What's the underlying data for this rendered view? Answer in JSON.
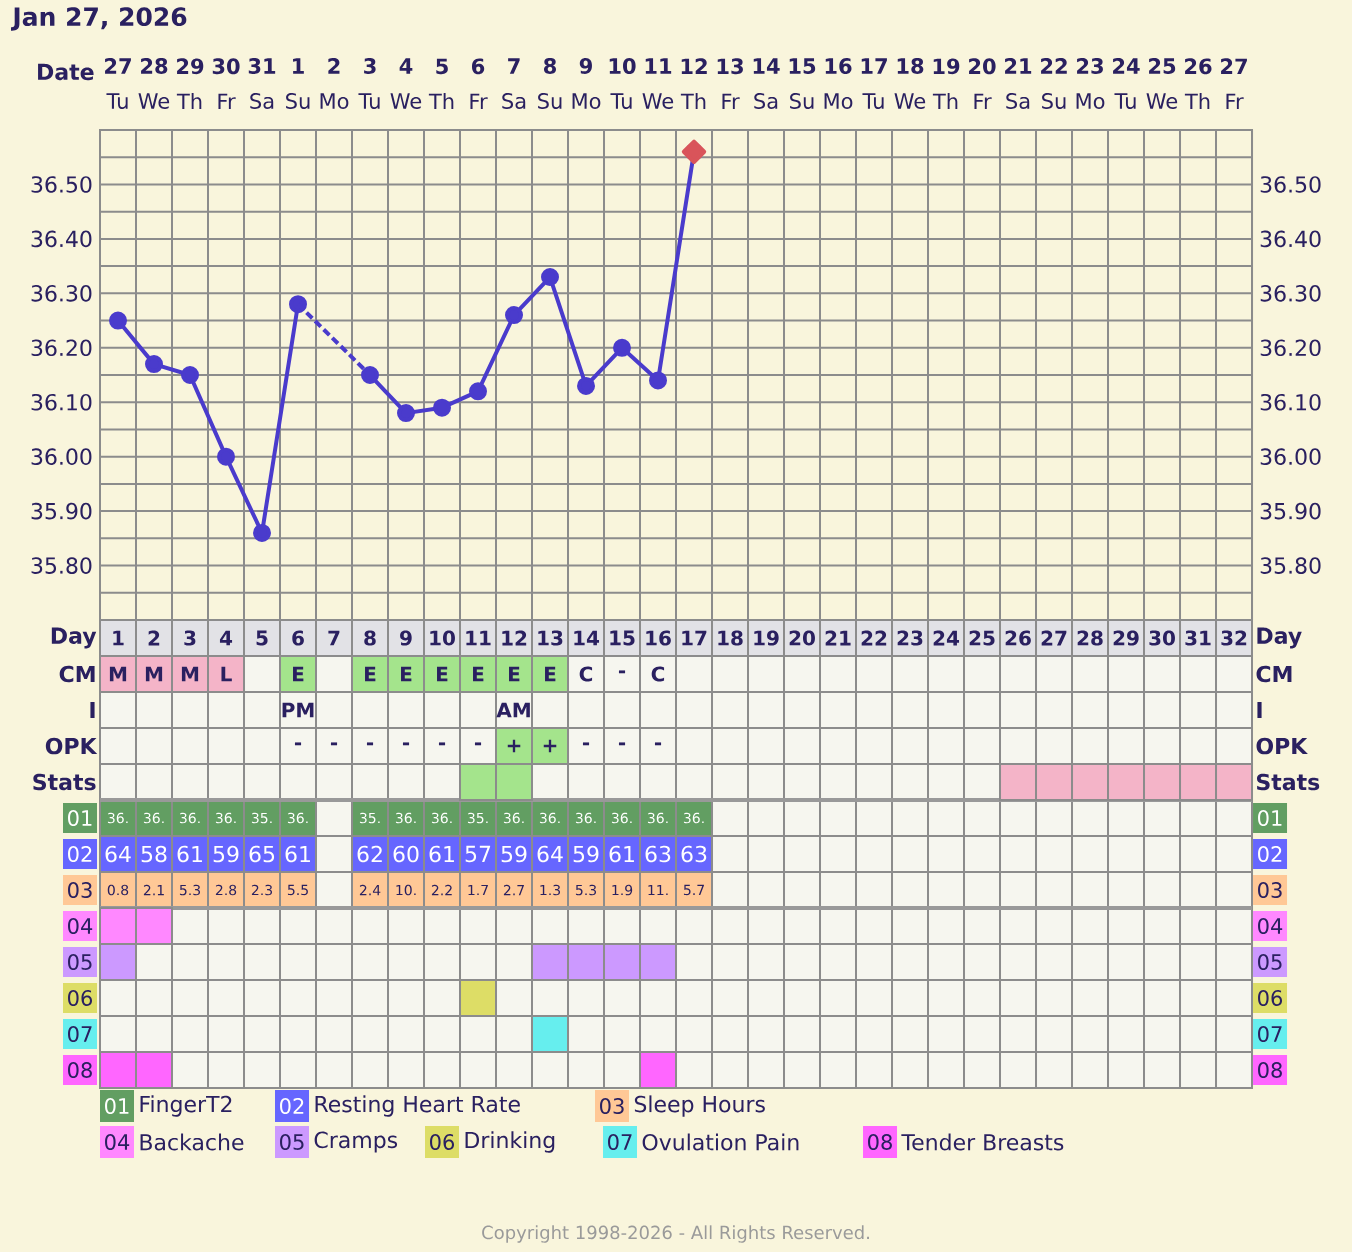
{
  "chart_data": [
    {
      "type": "line",
      "title": "Jan 27, 2026",
      "xlabel": "Date",
      "categories": [
        "**27** Tu",
        "**28** We",
        "**29** Th",
        "**30** Fr",
        "**31** Sa",
        "**1** Su",
        "**2** Mo",
        "**3** Tu",
        "**4** We",
        "**5** Th",
        "**6** Fr",
        "**7** Sa",
        "**8** Su",
        "**9** Mo",
        "**10** Tu",
        "**11** We",
        "**12** Th",
        "**13** Fr",
        "**14** Sa",
        "**15** Su",
        "**16** Mo",
        "**17** Tu",
        "**18** We",
        "**19** Th",
        "**20** Fr",
        "**21** Sa",
        "**22** Su",
        "**23** Mo",
        "**24** Tu",
        "**25** We",
        "**26** Th",
        "**27** Fr"
      ],
      "ylim": [
        35.7,
        36.6
      ],
      "yticks": [
        {
          "value": 35.75,
          "label": null
        },
        {
          "value": 35.8,
          "label": "35.80"
        },
        {
          "value": 35.85,
          "label": null
        },
        {
          "value": 35.9,
          "label": "35.90"
        },
        {
          "value": 35.95,
          "label": null
        },
        {
          "value": 36.0,
          "label": "36.00"
        },
        {
          "value": 36.05,
          "label": null
        },
        {
          "value": 36.1,
          "label": "36.10"
        },
        {
          "value": 36.15,
          "label": null
        },
        {
          "value": 36.2,
          "label": "36.20"
        },
        {
          "value": 36.25,
          "label": null
        },
        {
          "value": 36.3,
          "label": "36.30"
        },
        {
          "value": 36.35,
          "label": null
        },
        {
          "value": 36.4,
          "label": "36.40"
        },
        {
          "value": 36.45,
          "label": null
        },
        {
          "value": 36.5,
          "label": "36.50"
        },
        {
          "value": 36.55,
          "label": null
        }
      ],
      "y2lim": [
        35.7,
        36.6
      ],
      "y2ticks": [
        {
          "value": 35.8,
          "label": "35.80"
        },
        {
          "value": 35.9,
          "label": "35.90"
        },
        {
          "value": 36.0,
          "label": "36.00"
        },
        {
          "value": 36.1,
          "label": "36.10"
        },
        {
          "value": 36.2,
          "label": "36.20"
        },
        {
          "value": 36.3,
          "label": "36.30"
        },
        {
          "value": 36.4,
          "label": "36.40"
        },
        {
          "value": 36.5,
          "label": "36.50"
        }
      ],
      "grid": true,
      "series": [
        {
          "type": "line",
          "color": "#4a3bcc",
          "marker": "circle",
          "line_style": "solid",
          "values": [
            36.25,
            36.17,
            36.15,
            36.0,
            35.86,
            36.28,
            null,
            36.15,
            36.08,
            36.09,
            36.12,
            36.26,
            36.33,
            36.13,
            36.2,
            36.14,
            36.56,
            null,
            null,
            null,
            null,
            null,
            null,
            null,
            null,
            null,
            null,
            null,
            null,
            null,
            null,
            null
          ]
        },
        {
          "type": "scatter",
          "color": "#d9545a",
          "marker": "diamond",
          "values": [
            null,
            null,
            null,
            null,
            null,
            null,
            null,
            null,
            null,
            null,
            null,
            null,
            null,
            null,
            null,
            null,
            36.56,
            null,
            null,
            null,
            null,
            null,
            null,
            null,
            null,
            null,
            null,
            null,
            null,
            null,
            null,
            null
          ]
        }
      ],
      "annotations": [
        "Copyright 1998-2026 - All Rights Reserved."
      ]
    },
    {
      "type": "heatmap",
      "categories": [
        null,
        null,
        null,
        null,
        null,
        null,
        null,
        null,
        null,
        null,
        null,
        null,
        null,
        null,
        null,
        null,
        null,
        null,
        null,
        null,
        null,
        null,
        null,
        null,
        null,
        null,
        null,
        null,
        null,
        null,
        null,
        null
      ],
      "y_categories": [
        "Day",
        "CM",
        "I",
        "OPK",
        "Stats",
        "01",
        "02",
        "03",
        "04",
        "05",
        "06",
        "07",
        "08"
      ],
      "y2_categories": [
        "Day",
        "CM",
        "I",
        "OPK",
        "Stats",
        "01",
        "02",
        "03",
        "04",
        "05",
        "06",
        "07",
        "08"
      ],
      "cells": [
        [
          null,
          null,
          null,
          null,
          null,
          null,
          null,
          null,
          null,
          null,
          null,
          null,
          null,
          null,
          null,
          null,
          null,
          null,
          null,
          null,
          null,
          null,
          null,
          null,
          null,
          null,
          null,
          null,
          null,
          null,
          null,
          null
        ],
        [
          null,
          null,
          null,
          null,
          null,
          null,
          null,
          null,
          null,
          null,
          null,
          null,
          null,
          null,
          null,
          null,
          null,
          null,
          null,
          null,
          null,
          null,
          null,
          null,
          null,
          null,
          null,
          null,
          null,
          null,
          null,
          null
        ],
        [
          null,
          null,
          null,
          null,
          null,
          null,
          null,
          null,
          null,
          null,
          null,
          null,
          null,
          null,
          null,
          null,
          null,
          null,
          null,
          null,
          null,
          null,
          null,
          null,
          null,
          null,
          null,
          null,
          null,
          null,
          null,
          null
        ],
        [
          null,
          null,
          null,
          null,
          null,
          null,
          null,
          null,
          null,
          null,
          null,
          null,
          null,
          null,
          null,
          null,
          null,
          null,
          null,
          null,
          null,
          null,
          null,
          null,
          null,
          null,
          null,
          null,
          null,
          null,
          null,
          null
        ],
        [
          null,
          null,
          null,
          null,
          null,
          null,
          null,
          null,
          null,
          null,
          null,
          null,
          null,
          null,
          null,
          null,
          null,
          null,
          null,
          null,
          null,
          null,
          null,
          null,
          null,
          null,
          null,
          null,
          null,
          null,
          null,
          null
        ],
        [
          null,
          null,
          null,
          null,
          null,
          null,
          null,
          null,
          null,
          null,
          null,
          null,
          null,
          null,
          null,
          null,
          null,
          null,
          null,
          null,
          null,
          null,
          null,
          null,
          null,
          null,
          null,
          null,
          null,
          null,
          null,
          null
        ],
        [
          null,
          null,
          null,
          null,
          null,
          null,
          null,
          null,
          null,
          null,
          null,
          null,
          null,
          null,
          null,
          null,
          null,
          null,
          null,
          null,
          null,
          null,
          null,
          null,
          null,
          null,
          null,
          null,
          null,
          null,
          null,
          null
        ],
        [
          null,
          null,
          null,
          null,
          null,
          null,
          null,
          null,
          null,
          null,
          null,
          null,
          null,
          null,
          null,
          null,
          null,
          null,
          null,
          null,
          null,
          null,
          null,
          null,
          null,
          null,
          null,
          null,
          null,
          null,
          null,
          null
        ],
        [
          null,
          null,
          null,
          null,
          null,
          null,
          null,
          null,
          null,
          null,
          null,
          null,
          null,
          null,
          null,
          null,
          null,
          null,
          null,
          null,
          null,
          null,
          null,
          null,
          null,
          null,
          null,
          null,
          null,
          null,
          null,
          null
        ],
        [
          null,
          null,
          null,
          null,
          null,
          null,
          null,
          null,
          null,
          null,
          null,
          null,
          null,
          null,
          null,
          null,
          null,
          null,
          null,
          null,
          null,
          null,
          null,
          null,
          null,
          null,
          null,
          null,
          null,
          null,
          null,
          null
        ],
        [
          null,
          null,
          null,
          null,
          null,
          null,
          null,
          null,
          null,
          null,
          null,
          null,
          null,
          null,
          null,
          null,
          null,
          null,
          null,
          null,
          null,
          null,
          null,
          null,
          null,
          null,
          null,
          null,
          null,
          null,
          null,
          null
        ],
        [
          null,
          null,
          null,
          null,
          null,
          null,
          null,
          null,
          null,
          null,
          null,
          null,
          null,
          null,
          null,
          null,
          null,
          null,
          null,
          null,
          null,
          null,
          null,
          null,
          null,
          null,
          null,
          null,
          null,
          null,
          null,
          null
        ],
        [
          null,
          null,
          null,
          null,
          null,
          null,
          null,
          null,
          null,
          null,
          null,
          null,
          null,
          null,
          null,
          null,
          null,
          null,
          null,
          null,
          null,
          null,
          null,
          null,
          null,
          null,
          null,
          null,
          null,
          null,
          null,
          null
        ]
      ],
      "cell_labels": [
        [
          "1",
          "2",
          "3",
          "4",
          "5",
          "6",
          "7",
          "8",
          "9",
          "10",
          "11",
          "12",
          "13",
          "14",
          "15",
          "16",
          "17",
          "18",
          "19",
          "20",
          "21",
          "22",
          "23",
          "24",
          "25",
          "26",
          "27",
          "28",
          "29",
          "30",
          "31",
          "32"
        ],
        [
          "M",
          "M",
          "M",
          "L",
          null,
          "E",
          null,
          "E",
          "E",
          "E",
          "E",
          "E",
          "E",
          "C",
          "-",
          "C",
          null,
          null,
          null,
          null,
          null,
          null,
          null,
          null,
          null,
          null,
          null,
          null,
          null,
          null,
          null,
          null
        ],
        [
          null,
          null,
          null,
          null,
          null,
          "PM",
          null,
          null,
          null,
          null,
          null,
          "AM",
          null,
          null,
          null,
          null,
          null,
          null,
          null,
          null,
          null,
          null,
          null,
          null,
          null,
          null,
          null,
          null,
          null,
          null,
          null,
          null
        ],
        [
          null,
          null,
          null,
          null,
          null,
          "-",
          "-",
          "-",
          "-",
          "-",
          "-",
          "+",
          "+",
          "-",
          "-",
          "-",
          null,
          null,
          null,
          null,
          null,
          null,
          null,
          null,
          null,
          null,
          null,
          null,
          null,
          null,
          null,
          null
        ],
        [
          null,
          null,
          null,
          null,
          null,
          null,
          null,
          null,
          null,
          null,
          null,
          null,
          null,
          null,
          null,
          null,
          null,
          null,
          null,
          null,
          null,
          null,
          null,
          null,
          null,
          null,
          null,
          null,
          null,
          null,
          null,
          null
        ],
        [
          "36.",
          "36.",
          "36.",
          "36.",
          "35.",
          "36.",
          null,
          "35.",
          "36.",
          "36.",
          "35.",
          "36.",
          "36.",
          "36.",
          "36.",
          "36.",
          "36.",
          null,
          null,
          null,
          null,
          null,
          null,
          null,
          null,
          null,
          null,
          null,
          null,
          null,
          null,
          null
        ],
        [
          "64",
          "58",
          "61",
          "59",
          "65",
          "61",
          null,
          "62",
          "60",
          "61",
          "57",
          "59",
          "64",
          "59",
          "61",
          "63",
          "63",
          null,
          null,
          null,
          null,
          null,
          null,
          null,
          null,
          null,
          null,
          null,
          null,
          null,
          null,
          null
        ],
        [
          "0.8",
          "2.1",
          "5.3",
          "2.8",
          "2.3",
          "5.5",
          null,
          "2.4",
          "10.",
          "2.2",
          "1.7",
          "2.7",
          "1.3",
          "5.3",
          "1.9",
          "11.",
          "5.7",
          null,
          null,
          null,
          null,
          null,
          null,
          null,
          null,
          null,
          null,
          null,
          null,
          null,
          null,
          null
        ],
        [
          null,
          null,
          null,
          null,
          null,
          null,
          null,
          null,
          null,
          null,
          null,
          null,
          null,
          null,
          null,
          null,
          null,
          null,
          null,
          null,
          null,
          null,
          null,
          null,
          null,
          null,
          null,
          null,
          null,
          null,
          null,
          null
        ],
        [
          null,
          null,
          null,
          null,
          null,
          null,
          null,
          null,
          null,
          null,
          null,
          null,
          null,
          null,
          null,
          null,
          null,
          null,
          null,
          null,
          null,
          null,
          null,
          null,
          null,
          null,
          null,
          null,
          null,
          null,
          null,
          null
        ],
        [
          null,
          null,
          null,
          null,
          null,
          null,
          null,
          null,
          null,
          null,
          null,
          null,
          null,
          null,
          null,
          null,
          null,
          null,
          null,
          null,
          null,
          null,
          null,
          null,
          null,
          null,
          null,
          null,
          null,
          null,
          null,
          null
        ],
        [
          null,
          null,
          null,
          null,
          null,
          null,
          null,
          null,
          null,
          null,
          null,
          null,
          null,
          null,
          null,
          null,
          null,
          null,
          null,
          null,
          null,
          null,
          null,
          null,
          null,
          null,
          null,
          null,
          null,
          null,
          null,
          null
        ],
        [
          null,
          null,
          null,
          null,
          null,
          null,
          null,
          null,
          null,
          null,
          null,
          null,
          null,
          null,
          null,
          null,
          null,
          null,
          null,
          null,
          null,
          null,
          null,
          null,
          null,
          null,
          null,
          null,
          null,
          null,
          null,
          null
        ]
      ],
      "colors": [
        [
          "#e2e2e6",
          "#e2e2e6",
          "#e2e2e6",
          "#e2e2e6",
          "#e2e2e6",
          "#e2e2e6",
          "#e2e2e6",
          "#e2e2e6",
          "#e2e2e6",
          "#e2e2e6",
          "#e2e2e6",
          "#e2e2e6",
          "#e2e2e6",
          "#e2e2e6",
          "#e2e2e6",
          "#e2e2e6",
          "#e2e2e6",
          "#e2e2e6",
          "#e2e2e6",
          "#e2e2e6",
          "#e2e2e6",
          "#e2e2e6",
          "#e2e2e6",
          "#e2e2e6",
          "#e2e2e6",
          "#e2e2e6",
          "#e2e2e6",
          "#e2e2e6",
          "#e2e2e6",
          "#e2e2e6",
          "#e2e2e6",
          "#e2e2e6"
        ],
        [
          "#f4b4c8",
          "#f4b4c8",
          "#f4b4c8",
          "#f4b4c8",
          null,
          "#a4e48c",
          null,
          "#a4e48c",
          "#a4e48c",
          "#a4e48c",
          "#a4e48c",
          "#a4e48c",
          "#a4e48c",
          null,
          null,
          null,
          null,
          null,
          null,
          null,
          null,
          null,
          null,
          null,
          null,
          null,
          null,
          null,
          null,
          null,
          null,
          null
        ],
        [
          null,
          null,
          null,
          null,
          null,
          null,
          null,
          null,
          null,
          null,
          null,
          null,
          null,
          null,
          null,
          null,
          null,
          null,
          null,
          null,
          null,
          null,
          null,
          null,
          null,
          null,
          null,
          null,
          null,
          null,
          null,
          null
        ],
        [
          null,
          null,
          null,
          null,
          null,
          null,
          null,
          null,
          null,
          null,
          null,
          "#a4e48c",
          "#a4e48c",
          null,
          null,
          null,
          null,
          null,
          null,
          null,
          null,
          null,
          null,
          null,
          null,
          null,
          null,
          null,
          null,
          null,
          null,
          null
        ],
        [
          null,
          null,
          null,
          null,
          null,
          null,
          null,
          null,
          null,
          null,
          "#a4e48c",
          "#a4e48c",
          null,
          null,
          null,
          null,
          null,
          null,
          null,
          null,
          null,
          null,
          null,
          null,
          null,
          "#f4b4c8",
          "#f4b4c8",
          "#f4b4c8",
          "#f4b4c8",
          "#f4b4c8",
          "#f4b4c8",
          "#f4b4c8"
        ],
        [
          "#629e62",
          "#629e62",
          "#629e62",
          "#629e62",
          "#629e62",
          "#629e62",
          null,
          "#629e62",
          "#629e62",
          "#629e62",
          "#629e62",
          "#629e62",
          "#629e62",
          "#629e62",
          "#629e62",
          "#629e62",
          "#629e62",
          null,
          null,
          null,
          null,
          null,
          null,
          null,
          null,
          null,
          null,
          null,
          null,
          null,
          null,
          null
        ],
        [
          "#6666ff",
          "#6666ff",
          "#6666ff",
          "#6666ff",
          "#6666ff",
          "#6666ff",
          null,
          "#6666ff",
          "#6666ff",
          "#6666ff",
          "#6666ff",
          "#6666ff",
          "#6666ff",
          "#6666ff",
          "#6666ff",
          "#6666ff",
          "#6666ff",
          null,
          null,
          null,
          null,
          null,
          null,
          null,
          null,
          null,
          null,
          null,
          null,
          null,
          null,
          null
        ],
        [
          "#ffc896",
          "#ffc896",
          "#ffc896",
          "#ffc896",
          "#ffc896",
          "#ffc896",
          null,
          "#ffc896",
          "#ffc896",
          "#ffc896",
          "#ffc896",
          "#ffc896",
          "#ffc896",
          "#ffc896",
          "#ffc896",
          "#ffc896",
          "#ffc896",
          null,
          null,
          null,
          null,
          null,
          null,
          null,
          null,
          null,
          null,
          null,
          null,
          null,
          null,
          null
        ],
        [
          "#ff88ff",
          "#ff88ff",
          null,
          null,
          null,
          null,
          null,
          null,
          null,
          null,
          null,
          null,
          null,
          null,
          null,
          null,
          null,
          null,
          null,
          null,
          null,
          null,
          null,
          null,
          null,
          null,
          null,
          null,
          null,
          null,
          null,
          null
        ],
        [
          "#cc99ff",
          null,
          null,
          null,
          null,
          null,
          null,
          null,
          null,
          null,
          null,
          null,
          "#cc99ff",
          "#cc99ff",
          "#cc99ff",
          "#cc99ff",
          null,
          null,
          null,
          null,
          null,
          null,
          null,
          null,
          null,
          null,
          null,
          null,
          null,
          null,
          null,
          null
        ],
        [
          null,
          null,
          null,
          null,
          null,
          null,
          null,
          null,
          null,
          null,
          "#dddd66",
          null,
          null,
          null,
          null,
          null,
          null,
          null,
          null,
          null,
          null,
          null,
          null,
          null,
          null,
          null,
          null,
          null,
          null,
          null,
          null,
          null
        ],
        [
          null,
          null,
          null,
          null,
          null,
          null,
          null,
          null,
          null,
          null,
          null,
          null,
          "#66eeee",
          null,
          null,
          null,
          null,
          null,
          null,
          null,
          null,
          null,
          null,
          null,
          null,
          null,
          null,
          null,
          null,
          null,
          null,
          null
        ],
        [
          "#ff66ff",
          "#ff66ff",
          null,
          null,
          null,
          null,
          null,
          null,
          null,
          null,
          null,
          null,
          null,
          null,
          null,
          "#ff66ff",
          null,
          null,
          null,
          null,
          null,
          null,
          null,
          null,
          null,
          null,
          null,
          null,
          null,
          null,
          null,
          null
        ]
      ],
      "annotations": [
        "FingerT2",
        "Resting Heart Rate",
        "Sleep Hours",
        "Backache",
        "Cramps",
        "Drinking",
        "Ovulation Pain",
        "Tender Breasts"
      ]
    }
  ]
}
